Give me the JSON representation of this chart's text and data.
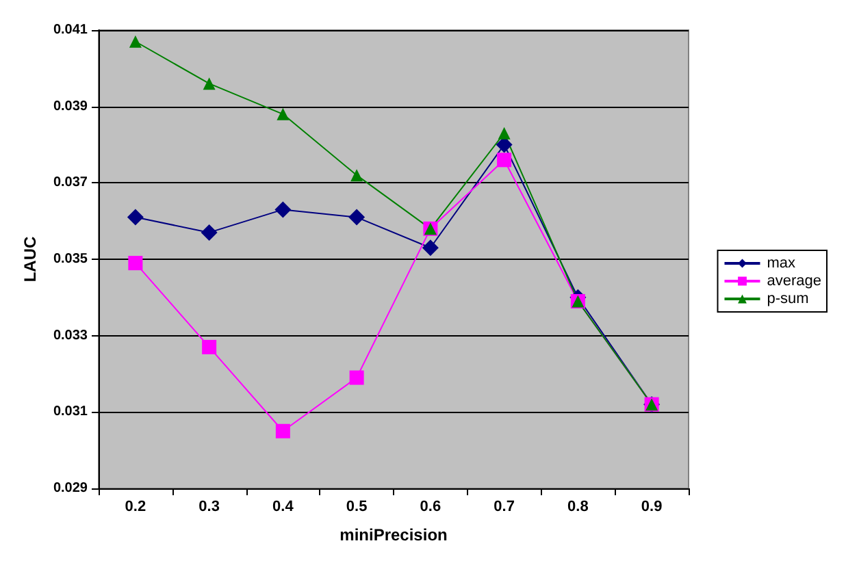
{
  "chart_data": {
    "type": "line",
    "xlabel": "miniPrecision",
    "ylabel": "LAUC",
    "categories": [
      "0.2",
      "0.3",
      "0.4",
      "0.5",
      "0.6",
      "0.7",
      "0.8",
      "0.9"
    ],
    "series": [
      {
        "name": "max",
        "color": "#000080",
        "marker": "diamond",
        "values": [
          0.0361,
          0.0357,
          0.0363,
          0.0361,
          0.0353,
          0.038,
          0.034,
          0.0312
        ]
      },
      {
        "name": "average",
        "color": "#ff00ff",
        "marker": "square",
        "values": [
          0.0349,
          0.0327,
          0.0305,
          0.0319,
          0.0358,
          0.0376,
          0.0339,
          0.0312
        ]
      },
      {
        "name": "p-sum",
        "color": "#008000",
        "marker": "triangle",
        "values": [
          0.0407,
          0.0396,
          0.0388,
          0.0372,
          0.0358,
          0.0383,
          0.0339,
          0.0312
        ]
      }
    ],
    "ylim": [
      0.029,
      0.041
    ],
    "yticks": [
      0.029,
      0.031,
      0.033,
      0.035,
      0.037,
      0.039,
      0.041
    ],
    "grid": "y",
    "legend": "right"
  }
}
